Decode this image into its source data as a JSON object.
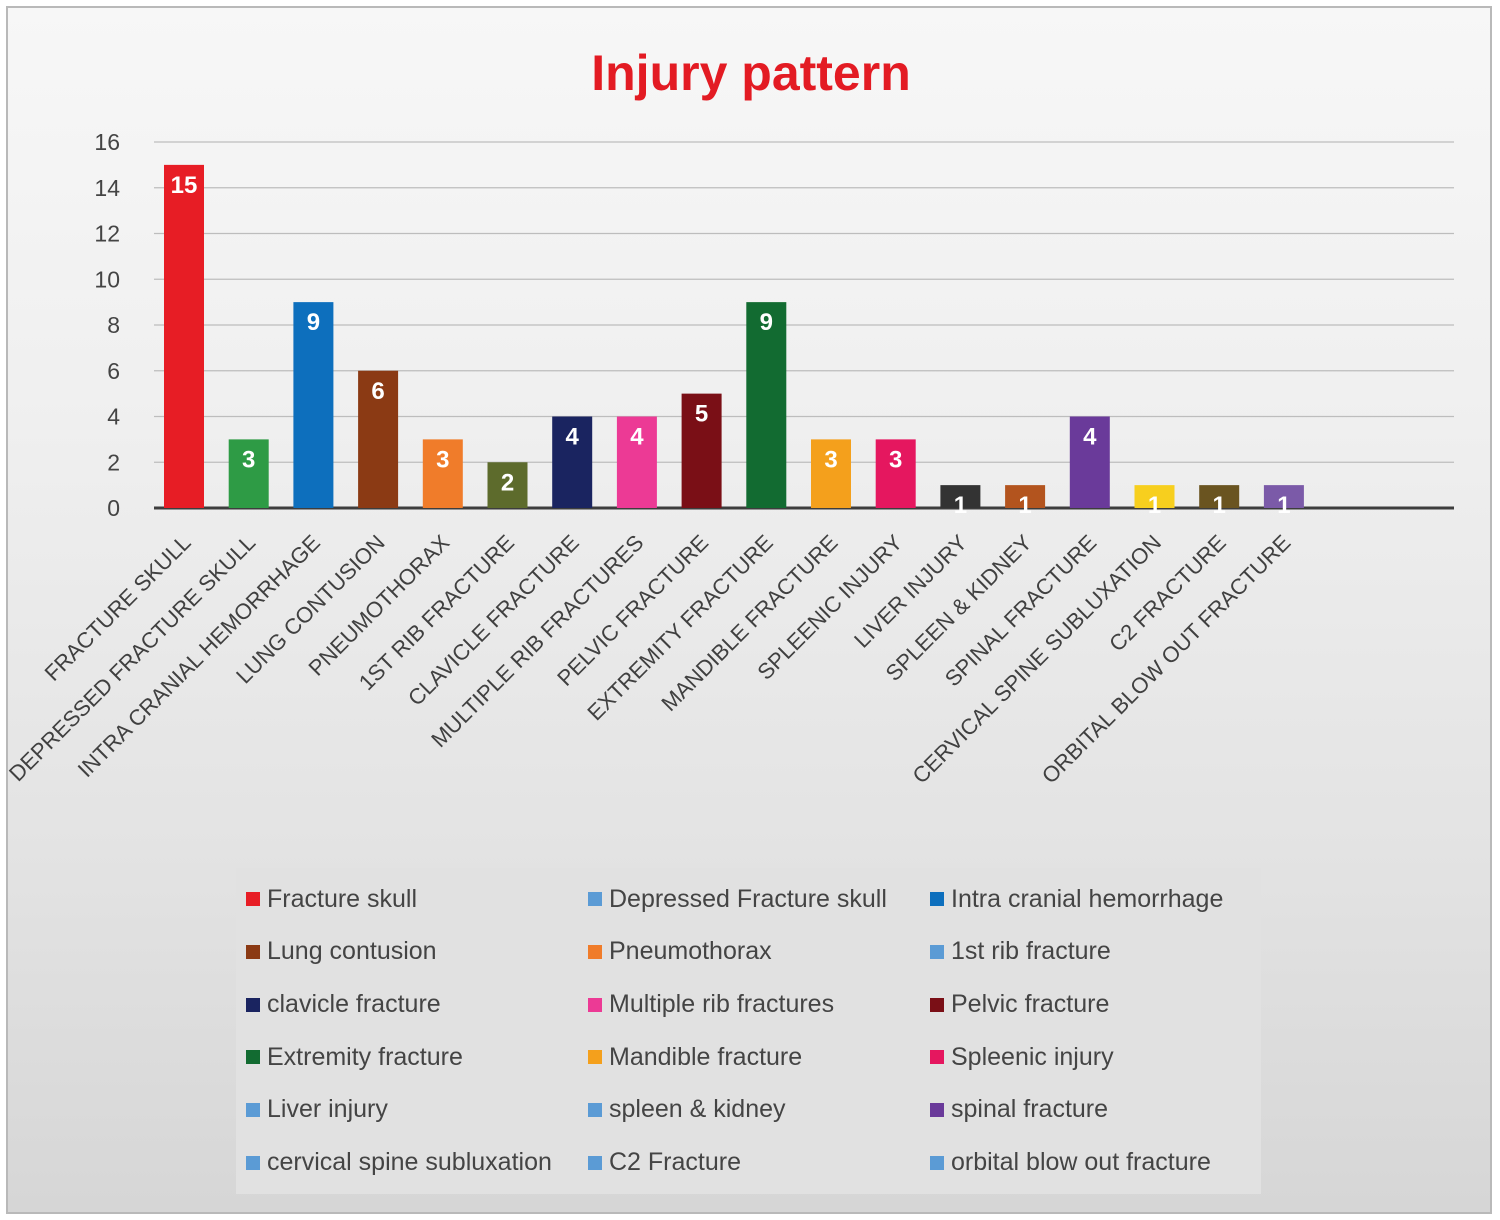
{
  "chart_data": {
    "type": "bar",
    "title": "Injury pattern",
    "xlabel": "",
    "ylabel": "",
    "ylim": [
      0,
      16
    ],
    "yticks": [
      0,
      2,
      4,
      6,
      8,
      10,
      12,
      14,
      16
    ],
    "grid": true,
    "legend_position": "bottom",
    "categories": [
      "FRACTURE SKULL",
      "DEPRESSED FRACTURE SKULL",
      "INTRA CRANIAL HEMORRHAGE",
      "LUNG CONTUSION",
      "PNEUMOTHORAX",
      "1ST RIB FRACTURE",
      "CLAVICLE FRACTURE",
      "MULTIPLE RIB FRACTURES",
      "PELVIC FRACTURE",
      "EXTREMITY FRACTURE",
      "MANDIBLE FRACTURE",
      "SPLEENIC INJURY",
      "LIVER INJURY",
      "SPLEEN & KIDNEY",
      "SPINAL FRACTURE",
      "CERVICAL SPINE SUBLUXATION",
      "C2 FRACTURE",
      "ORBITAL BLOW OUT FRACTURE"
    ],
    "values": [
      15,
      3,
      9,
      6,
      3,
      2,
      4,
      4,
      5,
      9,
      3,
      3,
      1,
      1,
      4,
      1,
      1,
      1
    ],
    "data_labels": [
      "15",
      "3",
      "9",
      "6",
      "3",
      "2",
      "4",
      "4",
      "5",
      "9",
      "3",
      "3",
      "1",
      "1",
      "4",
      "1",
      "1",
      "1"
    ],
    "bar_colors": [
      "#e71d25",
      "#2e9b45",
      "#0d6fbd",
      "#8b3a14",
      "#f07c2a",
      "#5d6b2c",
      "#1a2460",
      "#ec3a95",
      "#7a0f16",
      "#126b31",
      "#f4a01c",
      "#e5175f",
      "#333333",
      "#b3541e",
      "#6a3a9a",
      "#f7cf1e",
      "#6a5420",
      "#7b5aa8"
    ],
    "legend": [
      {
        "label": "Fracture skull",
        "color": "#e71d25"
      },
      {
        "label": "Depressed Fracture skull",
        "color": "#5b9bd5"
      },
      {
        "label": "Intra cranial hemorrhage",
        "color": "#0d6fbd"
      },
      {
        "label": "Lung contusion",
        "color": "#8b3a14"
      },
      {
        "label": "Pneumothorax",
        "color": "#f07c2a"
      },
      {
        "label": "1st rib fracture",
        "color": "#5b9bd5"
      },
      {
        "label": "clavicle fracture",
        "color": "#1a2460"
      },
      {
        "label": "Multiple rib fractures",
        "color": "#ec3a95"
      },
      {
        "label": "Pelvic fracture",
        "color": "#7a0f16"
      },
      {
        "label": "Extremity fracture",
        "color": "#126b31"
      },
      {
        "label": "Mandible fracture",
        "color": "#f4a01c"
      },
      {
        "label": "Spleenic injury",
        "color": "#e5175f"
      },
      {
        "label": "Liver injury",
        "color": "#5b9bd5"
      },
      {
        "label": "spleen & kidney",
        "color": "#5b9bd5"
      },
      {
        "label": "spinal fracture",
        "color": "#6a3a9a"
      },
      {
        "label": "cervical spine subluxation",
        "color": "#5b9bd5"
      },
      {
        "label": "C2 Fracture",
        "color": "#5b9bd5"
      },
      {
        "label": "orbital blow out fracture",
        "color": "#5b9bd5"
      }
    ]
  }
}
